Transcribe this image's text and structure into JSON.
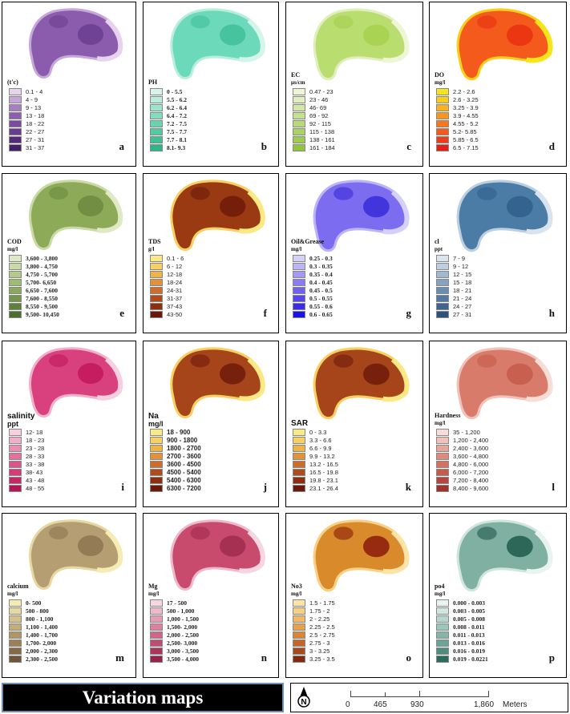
{
  "panels": [
    {
      "letter": "a",
      "title": "(t'c)",
      "unit": "",
      "fill": "#8b5cad",
      "hl": "#6a3d90",
      "ramp": [
        "#e7d3ee",
        "#c7a6d9",
        "#a77dc4",
        "#8e5eb3",
        "#7b4ba3",
        "#6a3b92",
        "#56297d",
        "#441e68"
      ],
      "labels": [
        "0.1 - 4",
        "4 - 9",
        "9 - 13",
        "13 - 18",
        "18 - 22",
        "22 - 27",
        "27 - 31",
        "31 - 37"
      ]
    },
    {
      "letter": "b",
      "title": "PH",
      "unit": "",
      "fill": "#6dd9bb",
      "hl": "#3fbf98",
      "ramp": [
        "#d6f5ea",
        "#b9eedb",
        "#9ae5cc",
        "#80ddbf",
        "#68d4b1",
        "#52cba3",
        "#3fc095",
        "#2cb587"
      ],
      "labels": [
        "0 - 5.5",
        "5.5 - 6.2",
        "6.2 - 6.4",
        "6.4 - 7.2",
        "7.2 - 7.5",
        "7.5 - 7.7",
        "7.7 - 8.1",
        "8.1- 9.3"
      ]
    },
    {
      "letter": "c",
      "title": "EC",
      "unit": "μs/cm",
      "fill": "#b9dd6e",
      "hl": "#a6d14f",
      "ramp": [
        "#eef6d6",
        "#e0efbd",
        "#d2e8a4",
        "#c5e18d",
        "#b8da77",
        "#abd362",
        "#9ecc4f",
        "#91c53c"
      ],
      "labels": [
        "0.47 - 23",
        "23 - 46",
        "46- 69",
        "69 - 92",
        "92 - 115",
        "115 - 138",
        "138 - 161",
        "161 - 184"
      ]
    },
    {
      "letter": "d",
      "title": "DO",
      "unit": "mg/l",
      "fill": "#f35a1c",
      "hl": "#e8300f",
      "ramp": [
        "#f5e51a",
        "#f7cf1a",
        "#f8b31b",
        "#f8961c",
        "#f6781b",
        "#f35a1c",
        "#ee3c18",
        "#e41f14"
      ],
      "labels": [
        "2.2 - 2.6",
        "2.6 - 3.25",
        "3.25 - 3.9",
        "3.9 - 4.55",
        "4.55 - 5.2",
        "5.2- 5.85",
        "5.85 - 6.5",
        "6.5 - 7.15"
      ]
    },
    {
      "letter": "e",
      "title": "COD",
      "unit": "mg/l",
      "fill": "#8daa58",
      "hl": "#6d8a3e",
      "ramp": [
        "#dfe9c3",
        "#c9daa5",
        "#b3ca8a",
        "#9dbb71",
        "#88aa5b",
        "#739749",
        "#5f823a",
        "#4c6d2d"
      ],
      "labels": [
        "3,600 - 3,800",
        "3,800 - 4,750",
        "4,750 - 5,700",
        "5,700- 6,650",
        "6,650 - 7,600",
        "7,600 - 8,550",
        "8,550 - 9,500",
        "9,500- 10,450"
      ]
    },
    {
      "letter": "f",
      "title": "TDS",
      "unit": "g/l",
      "fill": "#9a3a12",
      "hl": "#6e1b0a",
      "ramp": [
        "#fbe985",
        "#f7cf62",
        "#f0b347",
        "#e3903a",
        "#cf6c2c",
        "#b14b1c",
        "#8e2f10",
        "#6b1709"
      ],
      "labels": [
        "0.1 - 6",
        "6 - 12",
        "12-18",
        "18-24",
        "24-31",
        "31-37",
        "37-43",
        "43-50"
      ]
    },
    {
      "letter": "g",
      "title": "Oil&Grease",
      "unit": "mg/l",
      "fill": "#7b6cf0",
      "hl": "#3a2bd8",
      "ramp": [
        "#d5d0fa",
        "#bcb4f7",
        "#a398f4",
        "#8a7df1",
        "#7061ee",
        "#5747eb",
        "#3d2ce6",
        "#1a14e0"
      ],
      "labels": [
        "0.25 - 0.3",
        "0.3 - 0.35",
        "0.35 - 0.4",
        "0.4 - 0.45",
        "0.45 - 0.5",
        "0.5 - 0.55",
        "0.55 - 0.6",
        "0.6 - 0.65"
      ]
    },
    {
      "letter": "h",
      "title": "cl",
      "unit": "ppt",
      "fill": "#4b7ca6",
      "hl": "#2f5f8a",
      "ramp": [
        "#d9e4ee",
        "#bccfe0",
        "#9fb9d1",
        "#84a3c2",
        "#6a8db3",
        "#5379a3",
        "#3e6591",
        "#2c527d"
      ],
      "labels": [
        "7 - 9",
        "9 - 12",
        "12 - 15",
        "15 - 18",
        "18 - 21",
        "21 - 24",
        "24 - 27",
        "27 - 31"
      ]
    },
    {
      "letter": "i",
      "title": "salinity",
      "unit": "ppt",
      "fill": "#d9417e",
      "hl": "#c2185b",
      "ramp": [
        "#f8cfe0",
        "#f2afc9",
        "#eb8fb2",
        "#e4719d",
        "#dd5489",
        "#d63a77",
        "#c92567",
        "#b81558"
      ],
      "labels": [
        "12- 18",
        "18 - 23",
        "23 - 28",
        "28 - 33",
        "33 - 38",
        "38- 43",
        "43 - 48",
        "48 - 55"
      ]
    },
    {
      "letter": "j",
      "title": "Na",
      "unit": "mg/l",
      "fill": "#a6441a",
      "hl": "#6e1b0a",
      "ramp": [
        "#fbe985",
        "#f7cf62",
        "#f0b347",
        "#e3903a",
        "#cf6c2c",
        "#b14b1c",
        "#8e2f10",
        "#6b1709"
      ],
      "labels": [
        "18 - 900",
        "900 - 1800",
        "1800 - 2700",
        "2700 - 3600",
        "3600 - 4500",
        "4500 - 5400",
        "5400 - 6300",
        "6300 - 7200"
      ]
    },
    {
      "letter": "k",
      "title": "SAR",
      "unit": "",
      "fill": "#a6441a",
      "hl": "#6e1b0a",
      "ramp": [
        "#fbe985",
        "#f7cf62",
        "#f0b347",
        "#e3903a",
        "#cf6c2c",
        "#b14b1c",
        "#8e2f10",
        "#6b1709"
      ],
      "labels": [
        "0 - 3.3",
        "3.3 - 6.6",
        "6.6 - 9.9",
        "9.9 - 13.2",
        "13.2 - 16.5",
        "16.5 - 19.8",
        "19.8 - 23.1",
        "23.1 - 26.4"
      ]
    },
    {
      "letter": "l",
      "title": "Hardness",
      "unit": "mg/l",
      "fill": "#d97b6a",
      "hl": "#c45a4a",
      "ramp": [
        "#f7ddd7",
        "#f0c2b8",
        "#e8a698",
        "#e08b7a",
        "#d6715f",
        "#c95a4b",
        "#b8443a",
        "#a4302b"
      ],
      "labels": [
        "35 - 1,200",
        "1,200 - 2,400",
        "2,400 - 3,600",
        "3,600 - 4,800",
        "4,800 - 6,000",
        "6,000 - 7,200",
        "7,200 - 8,400",
        "8,400 - 9,600"
      ]
    },
    {
      "letter": "m",
      "title": "calcium",
      "unit": "mg/l",
      "fill": "#b59e72",
      "hl": "#8d7550",
      "ramp": [
        "#f5ecb3",
        "#e6d8a0",
        "#d5c28b",
        "#c3ac77",
        "#b09565",
        "#9c7f55",
        "#876947",
        "#725539"
      ],
      "labels": [
        "0- 500",
        "500 - 800",
        "800 - 1,100",
        "1,100 - 1,400",
        "1,400 - 1,700",
        "1,700- 2,000",
        "2,000 - 2,300",
        "2,300 - 2,500"
      ]
    },
    {
      "letter": "n",
      "title": "Mg",
      "unit": "mg/l",
      "fill": "#c84a6c",
      "hl": "#a02c4e",
      "ramp": [
        "#f7d5e2",
        "#efb9cc",
        "#e69cb5",
        "#dc809f",
        "#cf6589",
        "#c04b73",
        "#ae345f",
        "#98224c"
      ],
      "labels": [
        "17 - 500",
        "500 - 1,000",
        "1,000 - 1,500",
        "1,500- 2,000",
        "2,000 - 2,500",
        "2,500- 3,000",
        "3,000 - 3,500",
        "3,500 - 4,000"
      ]
    },
    {
      "letter": "o",
      "title": "No3",
      "unit": "mg/l",
      "fill": "#d98a2a",
      "hl": "#8a1a0a",
      "ramp": [
        "#fde3a6",
        "#f9cf84",
        "#f2b965",
        "#e8a14b",
        "#da8636",
        "#c56827",
        "#a84a1a",
        "#87290d"
      ],
      "labels": [
        "1.5 - 1.75",
        "1.75 - 2",
        "2 - 2.25",
        "2.25 - 2.5",
        "2.5 - 2.75",
        "2.75 - 3",
        "3 - 3.25",
        "3.25 - 3.5"
      ]
    },
    {
      "letter": "p",
      "title": "po4",
      "unit": "mg/l",
      "fill": "#7fb0a2",
      "hl": "#1f5a4a",
      "ramp": [
        "#e9f3f0",
        "#cfe5de",
        "#b5d6cc",
        "#9bc7ba",
        "#82b6a7",
        "#6aa494",
        "#4f8d7c",
        "#2a6b5b"
      ],
      "labels": [
        "0.000 - 0.003",
        "0.003 - 0.005",
        "0.005 - 0.008",
        "0.008 - 0.011",
        "0.011 - 0.013",
        "0.013 - 0.016",
        "0.016 - 0.019",
        "0.019 - 0.0221"
      ]
    }
  ],
  "caption": "Variation maps",
  "scale": {
    "ticks": [
      "0",
      "465",
      "930",
      "1,860"
    ],
    "unit": "Meters"
  }
}
